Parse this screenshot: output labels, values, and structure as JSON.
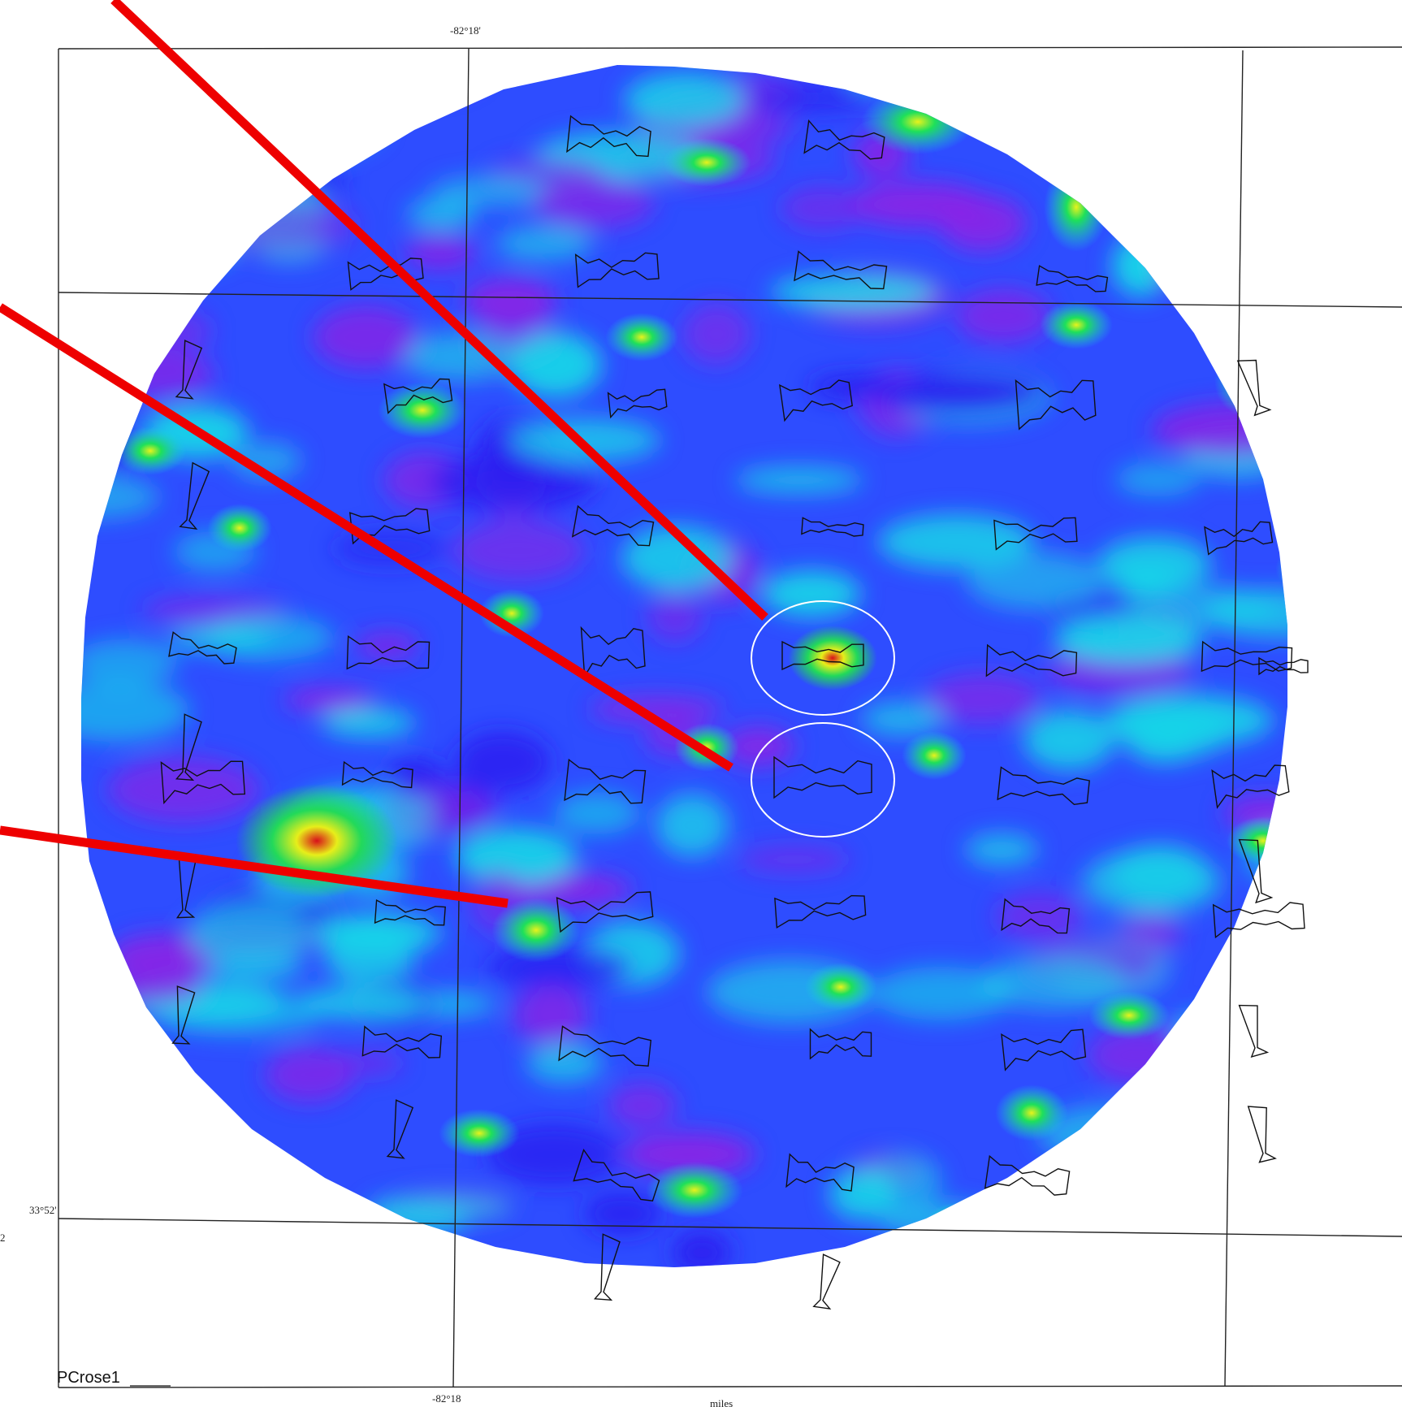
{
  "map": {
    "id_label": "PCrose1",
    "scale_label": "miles",
    "side_label": "2"
  },
  "coordinates": {
    "lon_top": "-82°18'",
    "lon_bottom": "-82°18",
    "lat_left": "33°52'"
  },
  "colors": {
    "low": "#2a1cf0",
    "field_blue": "#2e4dff",
    "purple": "#8a22e6",
    "cyan": "#19d7e8",
    "green": "#1de25a",
    "yellow": "#e9f41c",
    "red": "#e0101a",
    "pointer": "#ee0000",
    "highlight": "#ffffff",
    "rose_stroke": "#111111"
  },
  "legend_items": [],
  "highlights": [
    {
      "name": "anomaly-upper",
      "description": ""
    },
    {
      "name": "anomaly-lower",
      "description": ""
    }
  ]
}
